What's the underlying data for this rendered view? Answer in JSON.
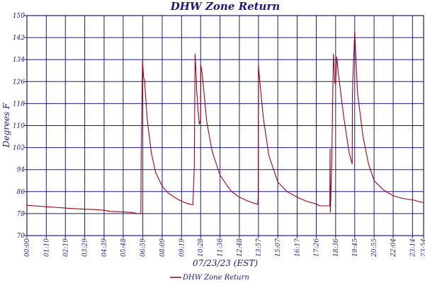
{
  "chart_data": {
    "type": "line",
    "title": "DHW Zone Return",
    "xlabel": "07/23/23 (EST)",
    "ylabel": "Degrees F",
    "ylim": [
      70,
      150
    ],
    "yticks": [
      70,
      78,
      86,
      94,
      102,
      110,
      118,
      126,
      134,
      142,
      150
    ],
    "xlim": [
      "00:00",
      "23:54"
    ],
    "xticks": [
      "00:00",
      "01:10",
      "02:19",
      "03:29",
      "04:39",
      "05:48",
      "06:59",
      "08:09",
      "09:19",
      "10:28",
      "11:38",
      "12:48",
      "13:57",
      "15:07",
      "16:17",
      "17:26",
      "18:36",
      "19:45",
      "20:55",
      "22:04",
      "23:14",
      "23:54"
    ],
    "grid": true,
    "legend_position": "bottom-center",
    "colors": {
      "series": "#a00018",
      "grid": "#1a1a80",
      "text": "#1a1a80"
    },
    "series": [
      {
        "name": "DHW Zone Return",
        "points": [
          [
            "00:00",
            81.0
          ],
          [
            "00:30",
            80.8
          ],
          [
            "01:10",
            80.5
          ],
          [
            "01:40",
            80.3
          ],
          [
            "02:19",
            80.0
          ],
          [
            "02:50",
            79.8
          ],
          [
            "03:29",
            79.6
          ],
          [
            "04:00",
            79.5
          ],
          [
            "04:39",
            79.2
          ],
          [
            "05:00",
            78.8
          ],
          [
            "05:48",
            78.6
          ],
          [
            "06:20",
            78.4
          ],
          [
            "06:40",
            78.0
          ],
          [
            "06:52",
            78.0
          ],
          [
            "06:53",
            98.0
          ],
          [
            "06:58",
            133.5
          ],
          [
            "07:02",
            127.5
          ],
          [
            "07:05",
            126.5
          ],
          [
            "07:15",
            112.0
          ],
          [
            "07:30",
            100.0
          ],
          [
            "07:45",
            93.0
          ],
          [
            "08:09",
            88.0
          ],
          [
            "08:30",
            85.5
          ],
          [
            "09:00",
            83.5
          ],
          [
            "09:19",
            82.5
          ],
          [
            "09:45",
            81.5
          ],
          [
            "10:00",
            81.2
          ],
          [
            "10:05",
            95.0
          ],
          [
            "10:08",
            136.0
          ],
          [
            "10:12",
            128.0
          ],
          [
            "10:14",
            122.0
          ],
          [
            "10:16",
            120.0
          ],
          [
            "10:18",
            116.5
          ],
          [
            "10:23",
            110.5
          ],
          [
            "10:28",
            112.0
          ],
          [
            "10:29",
            132.0
          ],
          [
            "10:34",
            128.5
          ],
          [
            "10:50",
            111.5
          ],
          [
            "11:10",
            100.5
          ],
          [
            "11:38",
            92.0
          ],
          [
            "12:05",
            88.0
          ],
          [
            "12:20",
            86.0
          ],
          [
            "12:48",
            84.0
          ],
          [
            "13:20",
            82.5
          ],
          [
            "13:50",
            81.5
          ],
          [
            "13:55",
            81.5
          ],
          [
            "13:56",
            84.5
          ],
          [
            "13:57",
            132.0
          ],
          [
            "14:02",
            126.0
          ],
          [
            "14:15",
            112.5
          ],
          [
            "14:35",
            99.0
          ],
          [
            "15:07",
            89.5
          ],
          [
            "15:40",
            86.0
          ],
          [
            "16:17",
            84.0
          ],
          [
            "16:50",
            82.5
          ],
          [
            "17:26",
            81.5
          ],
          [
            "17:40",
            80.8
          ],
          [
            "18:00",
            80.8
          ],
          [
            "18:15",
            80.8
          ],
          [
            "18:16",
            101.5
          ],
          [
            "18:17",
            78.5
          ],
          [
            "18:22",
            96.0
          ],
          [
            "18:28",
            136.0
          ],
          [
            "18:33",
            126.0
          ],
          [
            "18:36",
            125.0
          ],
          [
            "18:40",
            135.0
          ],
          [
            "18:47",
            128.0
          ],
          [
            "19:05",
            113.5
          ],
          [
            "19:25",
            100.0
          ],
          [
            "19:36",
            96.0
          ],
          [
            "19:37",
            120.0
          ],
          [
            "19:38",
            126.0
          ],
          [
            "19:45",
            144.0
          ],
          [
            "19:55",
            122.0
          ],
          [
            "20:15",
            106.0
          ],
          [
            "20:35",
            96.0
          ],
          [
            "20:55",
            90.0
          ],
          [
            "21:30",
            86.5
          ],
          [
            "22:04",
            84.5
          ],
          [
            "22:40",
            83.5
          ],
          [
            "23:14",
            83.0
          ],
          [
            "23:54",
            82.0
          ]
        ]
      }
    ]
  }
}
